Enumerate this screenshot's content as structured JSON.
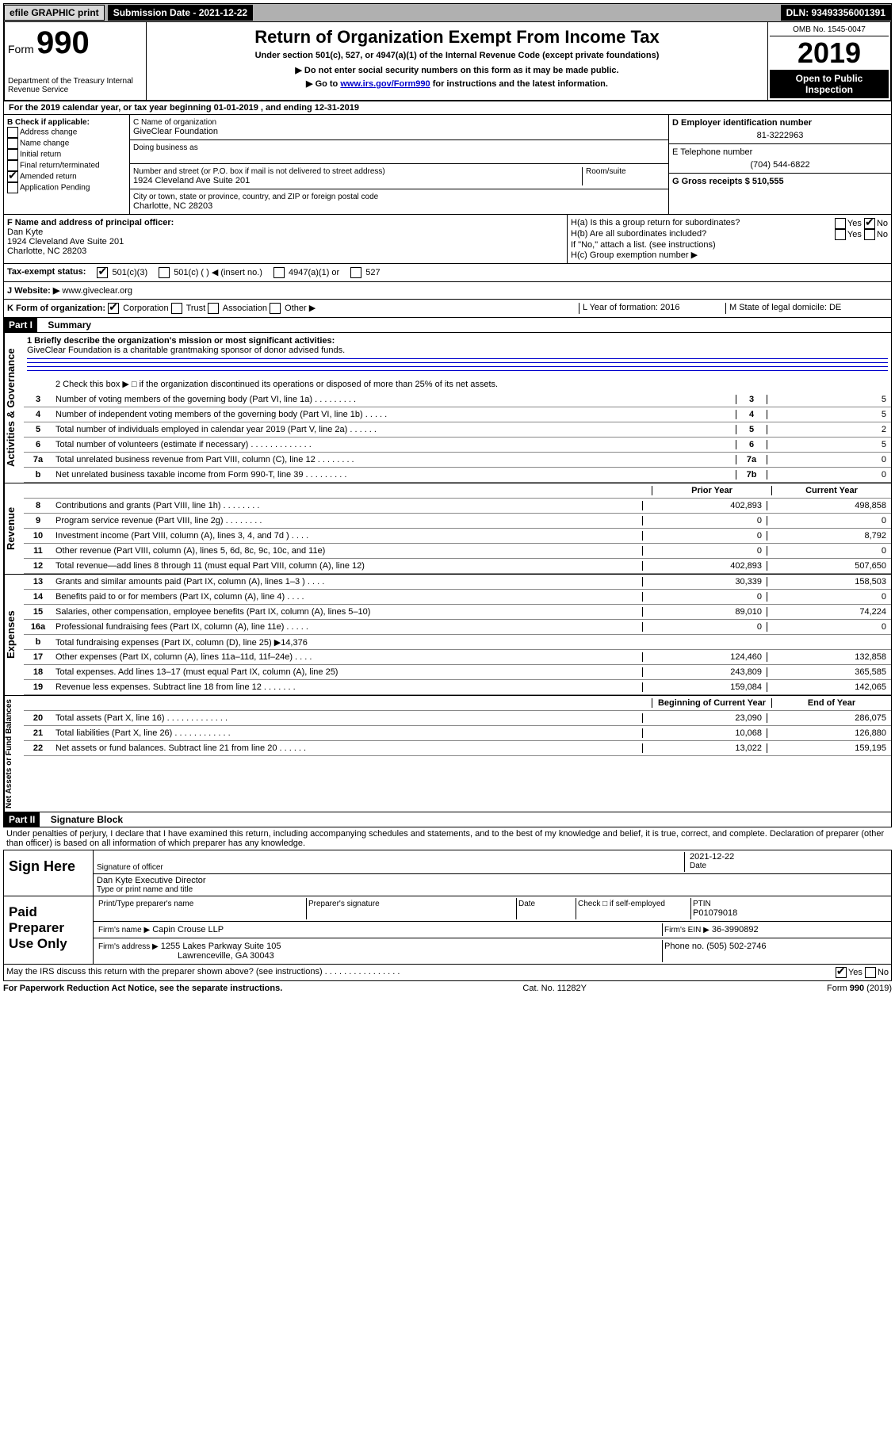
{
  "topbar": {
    "efile": "efile GRAPHIC print",
    "submission_label": "Submission Date - 2021-12-22",
    "dln_label": "DLN: 93493356001391"
  },
  "header": {
    "form_label": "Form",
    "form_number": "990",
    "dept": "Department of the Treasury\nInternal Revenue Service",
    "title": "Return of Organization Exempt From Income Tax",
    "subtitle": "Under section 501(c), 527, or 4947(a)(1) of the Internal Revenue Code (except private foundations)",
    "note1": "▶ Do not enter social security numbers on this form as it may be made public.",
    "note2_pre": "▶ Go to ",
    "note2_link": "www.irs.gov/Form990",
    "note2_post": " for instructions and the latest information.",
    "omb": "OMB No. 1545-0047",
    "year": "2019",
    "public": "Open to Public Inspection"
  },
  "section_a": {
    "line_a": "For the 2019 calendar year, or tax year beginning 01-01-2019   , and ending 12-31-2019",
    "b_label": "B Check if applicable:",
    "b_items": [
      "Address change",
      "Name change",
      "Initial return",
      "Final return/terminated",
      "Amended return",
      "Application Pending"
    ],
    "b_checked_index": 4,
    "c_name_label": "C Name of organization",
    "org_name": "GiveClear Foundation",
    "dba_label": "Doing business as",
    "addr_label": "Number and street (or P.O. box if mail is not delivered to street address)",
    "room_label": "Room/suite",
    "addr": "1924 Cleveland Ave Suite 201",
    "city_label": "City or town, state or province, country, and ZIP or foreign postal code",
    "city": "Charlotte, NC  28203",
    "d_label": "D Employer identification number",
    "ein": "81-3222963",
    "e_label": "E Telephone number",
    "phone": "(704) 544-6822",
    "g_label": "G Gross receipts $ 510,555",
    "f_label": "F  Name and address of principal officer:",
    "officer_name": "Dan Kyte",
    "officer_addr1": "1924 Cleveland Ave Suite 201",
    "officer_addr2": "Charlotte, NC  28203",
    "ha_label": "H(a)  Is this a group return for subordinates?",
    "hb_label": "H(b)  Are all subordinates included?",
    "hb_note": "If \"No,\" attach a list. (see instructions)",
    "hc_label": "H(c)  Group exemption number ▶",
    "i_label": "Tax-exempt status:",
    "i_opts": [
      "501(c)(3)",
      "501(c) (  ) ◀ (insert no.)",
      "4947(a)(1) or",
      "527"
    ],
    "j_label": "J   Website: ▶",
    "website": "www.giveclear.org",
    "k_label": "K Form of organization:",
    "k_opts": [
      "Corporation",
      "Trust",
      "Association",
      "Other ▶"
    ],
    "l_label": "L Year of formation: 2016",
    "m_label": "M State of legal domicile: DE"
  },
  "part1": {
    "header": "Part I",
    "title": "Summary",
    "q1_label": "1  Briefly describe the organization's mission or most significant activities:",
    "mission": "GiveClear Foundation is a charitable grantmaking sponsor of donor advised funds.",
    "q2": "2   Check this box ▶ □  if the organization discontinued its operations or disposed of more than 25% of its net assets.",
    "vert_labels": {
      "gov": "Activities & Governance",
      "rev": "Revenue",
      "exp": "Expenses",
      "net": "Net Assets or Fund Balances"
    },
    "gov_rows": [
      {
        "n": "3",
        "d": "Number of voting members of the governing body (Part VI, line 1a)   .   .   .   .   .   .   .   .   .",
        "box": "3",
        "v": "5"
      },
      {
        "n": "4",
        "d": "Number of independent voting members of the governing body (Part VI, line 1b)   .   .   .   .   .",
        "box": "4",
        "v": "5"
      },
      {
        "n": "5",
        "d": "Total number of individuals employed in calendar year 2019 (Part V, line 2a)   .   .   .   .   .   .",
        "box": "5",
        "v": "2"
      },
      {
        "n": "6",
        "d": "Total number of volunteers (estimate if necessary)   .   .   .   .   .   .   .   .   .   .   .   .   .",
        "box": "6",
        "v": "5"
      },
      {
        "n": "7a",
        "d": "Total unrelated business revenue from Part VIII, column (C), line 12   .   .   .   .   .   .   .   .",
        "box": "7a",
        "v": "0"
      },
      {
        "n": "b",
        "d": "Net unrelated business taxable income from Form 990-T, line 39   .   .   .   .   .   .   .   .   .",
        "box": "7b",
        "v": "0"
      }
    ],
    "col_headers": {
      "prior": "Prior Year",
      "current": "Current Year",
      "beg": "Beginning of Current Year",
      "end": "End of Year"
    },
    "rev_rows": [
      {
        "n": "8",
        "d": "Contributions and grants (Part VIII, line 1h)   .   .   .   .   .   .   .   .",
        "p": "402,893",
        "c": "498,858"
      },
      {
        "n": "9",
        "d": "Program service revenue (Part VIII, line 2g)   .   .   .   .   .   .   .   .",
        "p": "0",
        "c": "0"
      },
      {
        "n": "10",
        "d": "Investment income (Part VIII, column (A), lines 3, 4, and 7d )   .   .   .   .",
        "p": "0",
        "c": "8,792"
      },
      {
        "n": "11",
        "d": "Other revenue (Part VIII, column (A), lines 5, 6d, 8c, 9c, 10c, and 11e)",
        "p": "0",
        "c": "0"
      },
      {
        "n": "12",
        "d": "Total revenue—add lines 8 through 11 (must equal Part VIII, column (A), line 12)",
        "p": "402,893",
        "c": "507,650"
      }
    ],
    "exp_rows": [
      {
        "n": "13",
        "d": "Grants and similar amounts paid (Part IX, column (A), lines 1–3 )   .   .   .   .",
        "p": "30,339",
        "c": "158,503"
      },
      {
        "n": "14",
        "d": "Benefits paid to or for members (Part IX, column (A), line 4)   .   .   .   .",
        "p": "0",
        "c": "0"
      },
      {
        "n": "15",
        "d": "Salaries, other compensation, employee benefits (Part IX, column (A), lines 5–10)",
        "p": "89,010",
        "c": "74,224"
      },
      {
        "n": "16a",
        "d": "Professional fundraising fees (Part IX, column (A), line 11e)   .   .   .   .   .",
        "p": "0",
        "c": "0"
      },
      {
        "n": "b",
        "d": "Total fundraising expenses (Part IX, column (D), line 25) ▶14,376",
        "p": "grey",
        "c": "grey"
      },
      {
        "n": "17",
        "d": "Other expenses (Part IX, column (A), lines 11a–11d, 11f–24e)   .   .   .   .",
        "p": "124,460",
        "c": "132,858"
      },
      {
        "n": "18",
        "d": "Total expenses. Add lines 13–17 (must equal Part IX, column (A), line 25)",
        "p": "243,809",
        "c": "365,585"
      },
      {
        "n": "19",
        "d": "Revenue less expenses. Subtract line 18 from line 12   .   .   .   .   .   .   .",
        "p": "159,084",
        "c": "142,065"
      }
    ],
    "net_rows": [
      {
        "n": "20",
        "d": "Total assets (Part X, line 16)   .   .   .   .   .   .   .   .   .   .   .   .   .",
        "p": "23,090",
        "c": "286,075"
      },
      {
        "n": "21",
        "d": "Total liabilities (Part X, line 26)   .   .   .   .   .   .   .   .   .   .   .   .",
        "p": "10,068",
        "c": "126,880"
      },
      {
        "n": "22",
        "d": "Net assets or fund balances. Subtract line 21 from line 20   .   .   .   .   .   .",
        "p": "13,022",
        "c": "159,195"
      }
    ]
  },
  "part2": {
    "header": "Part II",
    "title": "Signature Block",
    "declaration": "Under penalties of perjury, I declare that I have examined this return, including accompanying schedules and statements, and to the best of my knowledge and belief, it is true, correct, and complete. Declaration of preparer (other than officer) is based on all information of which preparer has any knowledge.",
    "sign_here": "Sign Here",
    "sig_officer": "Signature of officer",
    "sig_date": "2021-12-22",
    "date_label": "Date",
    "officer_name_title": "Dan Kyte  Executive Director",
    "type_label": "Type or print name and title",
    "paid_label": "Paid Preparer Use Only",
    "prep_name_label": "Print/Type preparer's name",
    "prep_sig_label": "Preparer's signature",
    "self_emp": "Check □ if self-employed",
    "ptin_label": "PTIN",
    "ptin": "P01079018",
    "firm_name_label": "Firm's name    ▶",
    "firm_name": "Capin Crouse LLP",
    "firm_ein_label": "Firm's EIN ▶",
    "firm_ein": "36-3990892",
    "firm_addr_label": "Firm's address ▶",
    "firm_addr1": "1255 Lakes Parkway Suite 105",
    "firm_addr2": "Lawrenceville, GA  30043",
    "phone_label": "Phone no. (505) 502-2746",
    "discuss": "May the IRS discuss this return with the preparer shown above? (see instructions)   .   .   .   .   .   .   .   .   .   .   .   .   .   .   .   .",
    "yes": "Yes",
    "no": "No"
  },
  "footer": {
    "left": "For Paperwork Reduction Act Notice, see the separate instructions.",
    "mid": "Cat. No. 11282Y",
    "right": "Form 990 (2019)"
  }
}
